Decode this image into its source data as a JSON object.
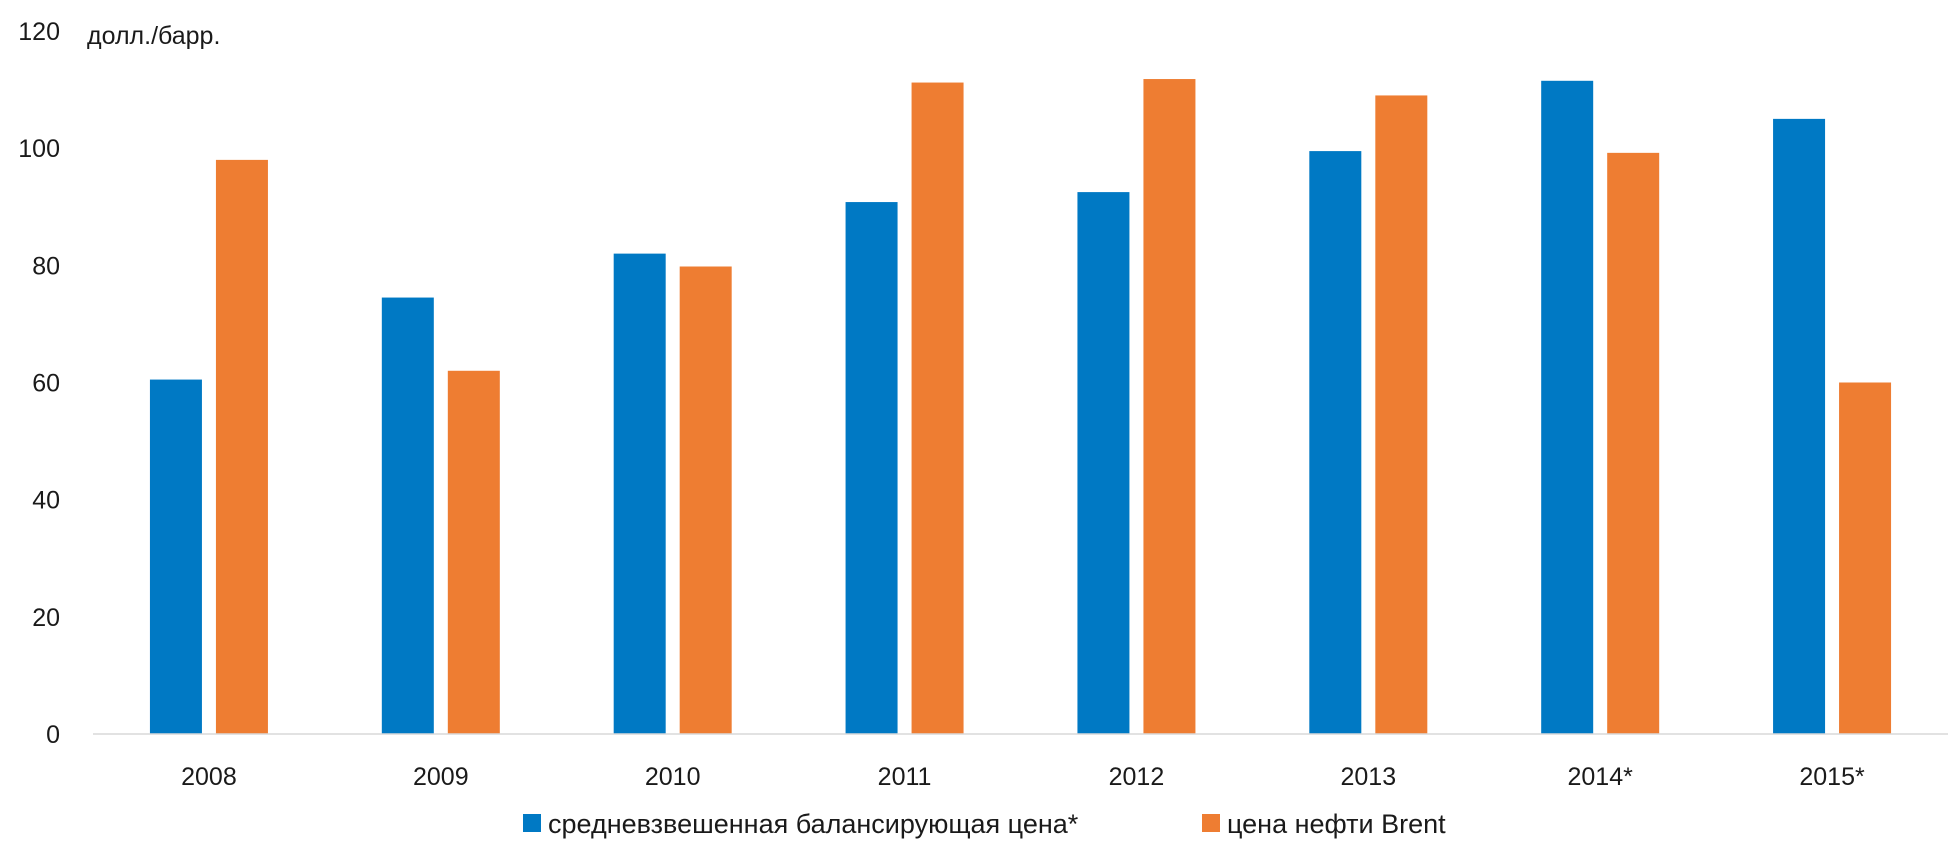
{
  "chart_data": {
    "type": "bar",
    "title": "",
    "unit_label": "долл./барр.",
    "xlabel": "",
    "ylabel": "",
    "ylim": [
      0,
      120
    ],
    "yticks": [
      0,
      20,
      40,
      60,
      80,
      100,
      120
    ],
    "grid": false,
    "legend_position": "bottom",
    "categories": [
      "2008",
      "2009",
      "2010",
      "2011",
      "2012",
      "2013",
      "2014*",
      "2015*"
    ],
    "series": [
      {
        "name": "средневзвешенная балансирующая цена*",
        "color": "#0079c4",
        "values": [
          60.5,
          74.5,
          82,
          90.8,
          92.5,
          99.5,
          111.5,
          105
        ]
      },
      {
        "name": "цена нефти Brent",
        "color": "#ee7d32",
        "values": [
          98,
          62,
          79.8,
          111.2,
          111.8,
          109,
          99.2,
          60
        ]
      }
    ]
  }
}
